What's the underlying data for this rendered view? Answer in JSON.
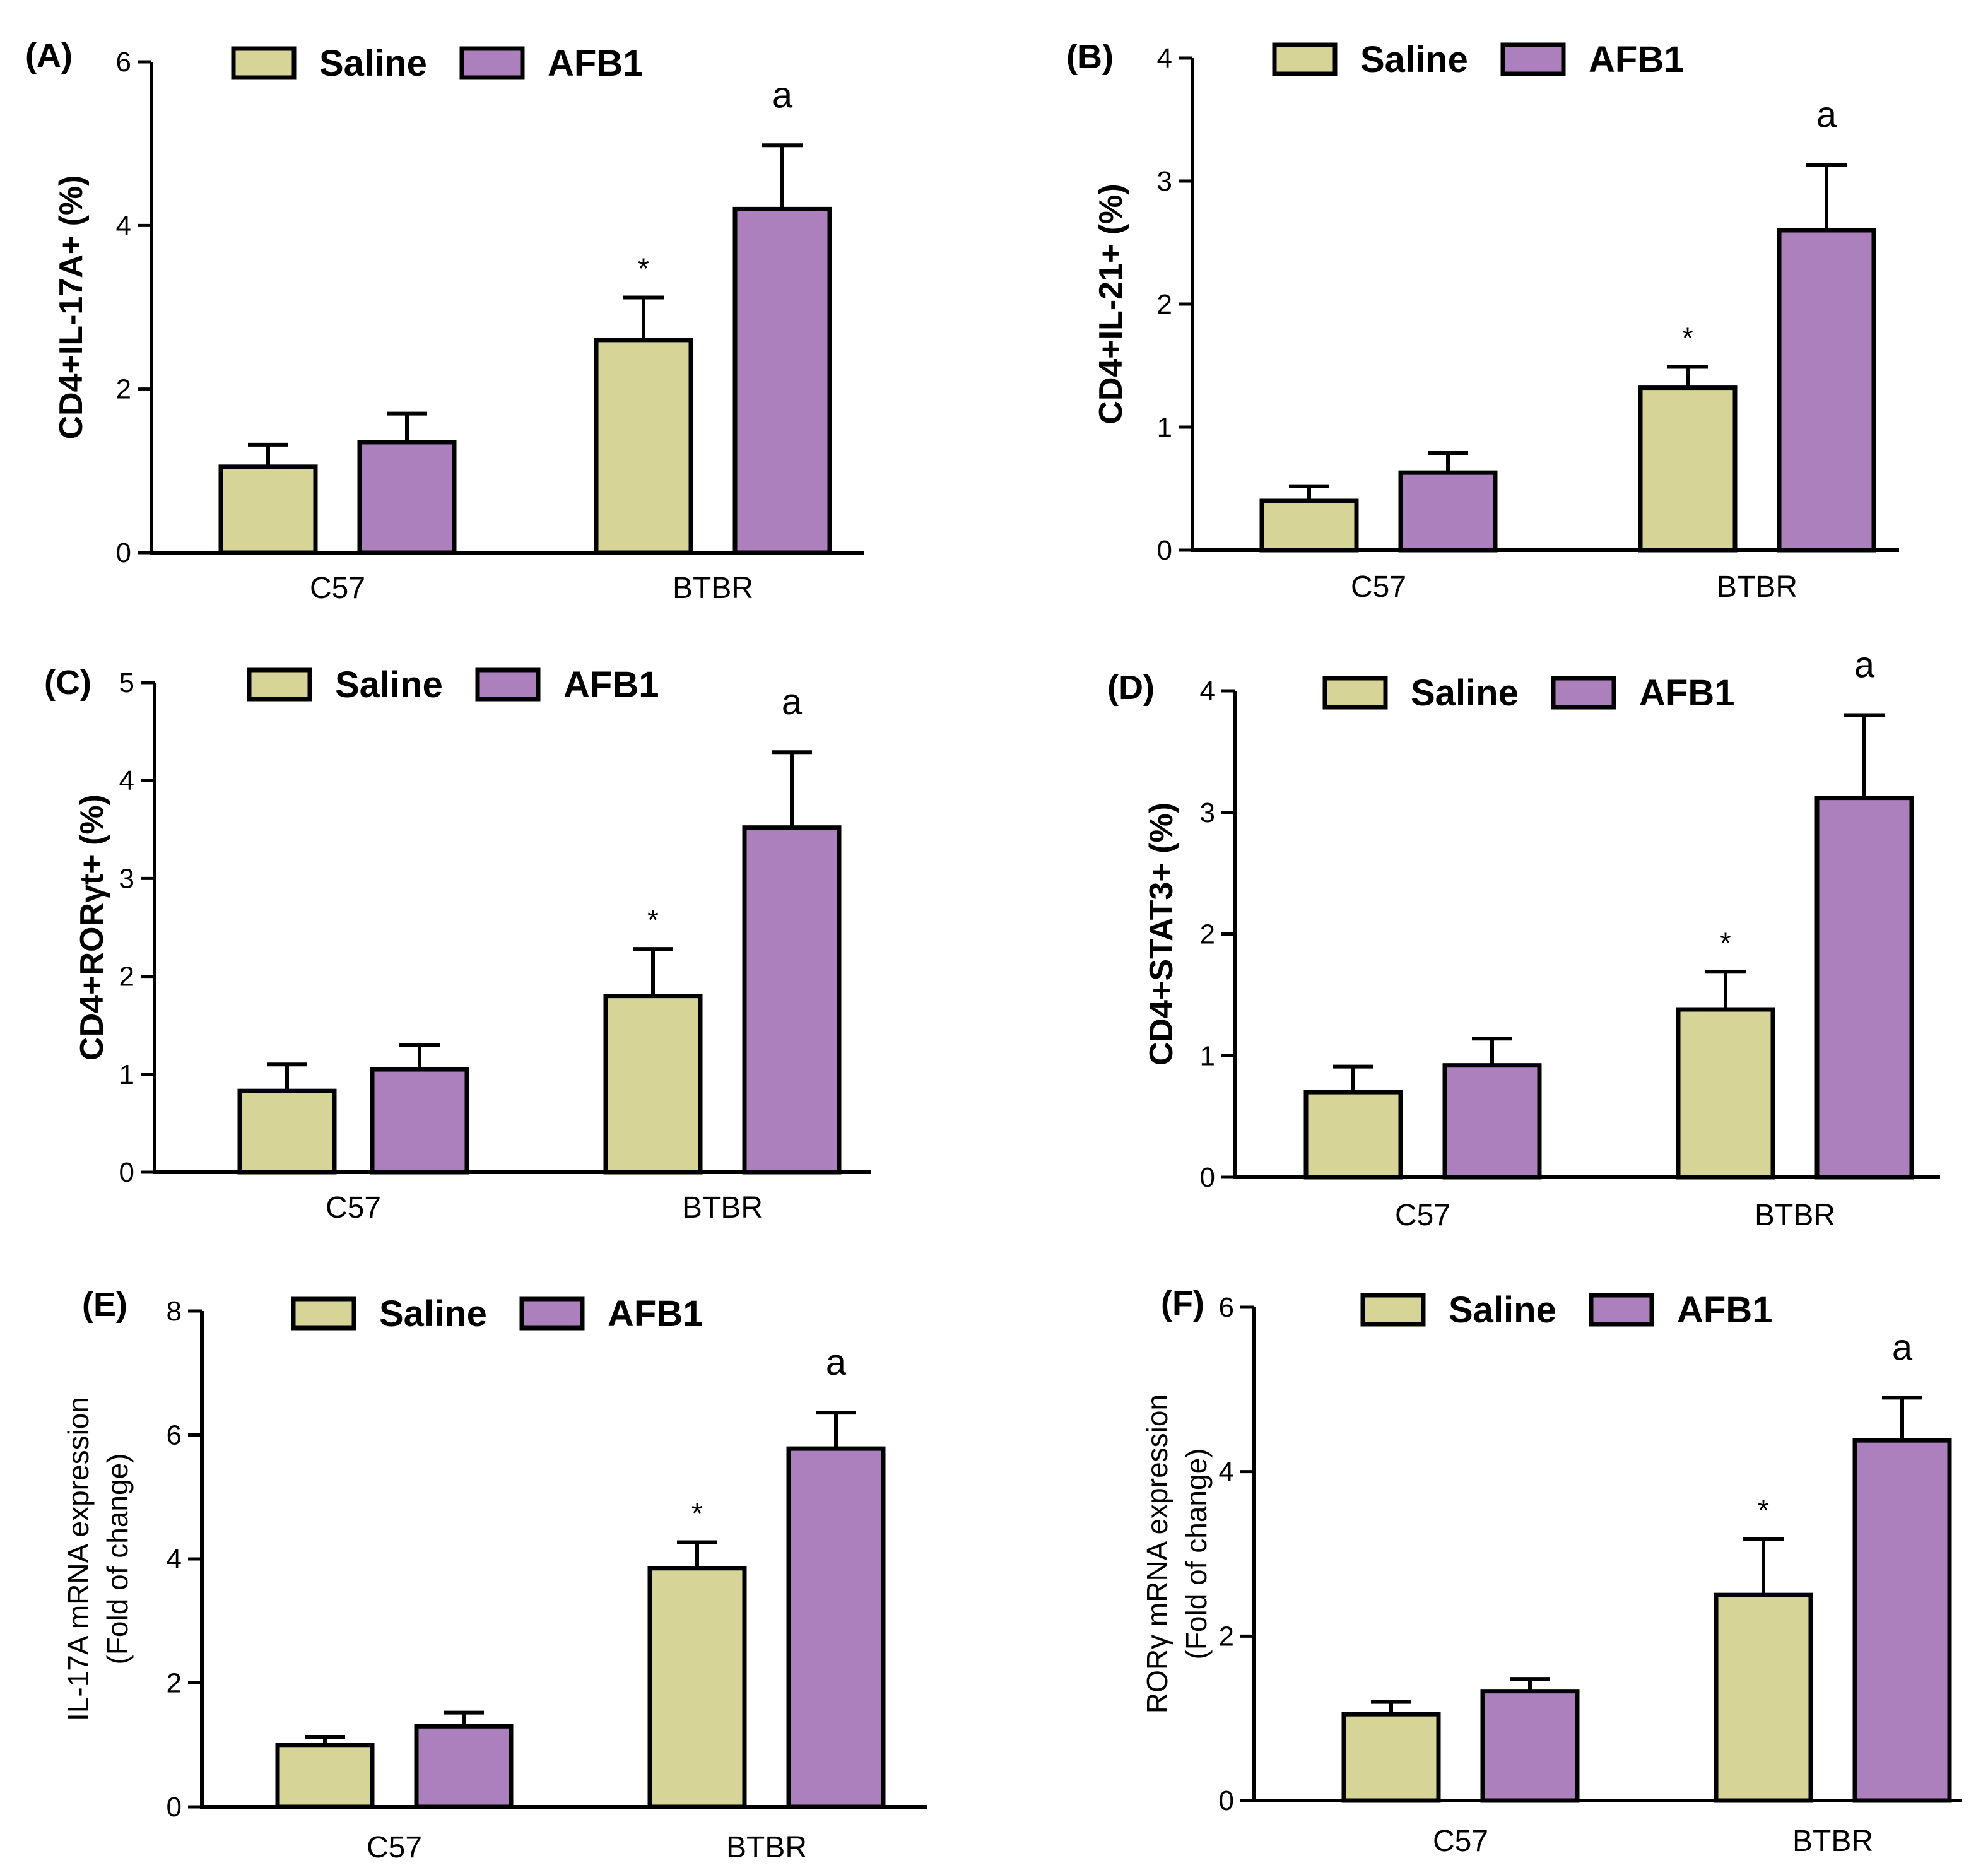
{
  "colors": {
    "saline": "#D6D597",
    "afb1": "#AC80BD",
    "stroke": "#000000"
  },
  "chart_data": [
    {
      "type": "bar",
      "panel": "(A)",
      "ylabel_lines": [
        "CD4+IL-17A+ (%)"
      ],
      "ylabel_style": "bold",
      "yticks": [
        0,
        2,
        4,
        6
      ],
      "ylim": [
        0,
        6
      ],
      "categories": [
        "C57",
        "BTBR"
      ],
      "legend": [
        "Saline",
        "AFB1"
      ],
      "series": [
        {
          "name": "Saline",
          "values": [
            1.05,
            2.6
          ],
          "errors": [
            0.27,
            0.52
          ]
        },
        {
          "name": "AFB1",
          "values": [
            1.35,
            4.2
          ],
          "errors": [
            0.35,
            0.78
          ]
        }
      ],
      "annotations": [
        {
          "category": "BTBR",
          "series": "Saline",
          "text": "*"
        },
        {
          "category": "BTBR",
          "series": "AFB1",
          "text": "a"
        }
      ]
    },
    {
      "type": "bar",
      "panel": "(B)",
      "ylabel_lines": [
        "CD4+IL-21+ (%)"
      ],
      "ylabel_style": "bold",
      "yticks": [
        0,
        1,
        2,
        3,
        4
      ],
      "ylim": [
        0,
        4
      ],
      "categories": [
        "C57",
        "BTBR"
      ],
      "legend": [
        "Saline",
        "AFB1"
      ],
      "series": [
        {
          "name": "Saline",
          "values": [
            0.4,
            1.32
          ],
          "errors": [
            0.12,
            0.17
          ]
        },
        {
          "name": "AFB1",
          "values": [
            0.63,
            2.6
          ],
          "errors": [
            0.16,
            0.53
          ]
        }
      ],
      "annotations": [
        {
          "category": "BTBR",
          "series": "Saline",
          "text": "*"
        },
        {
          "category": "BTBR",
          "series": "AFB1",
          "text": "a"
        }
      ]
    },
    {
      "type": "bar",
      "panel": "(C)",
      "ylabel_lines": [
        "CD4+RORγt+ (%)"
      ],
      "ylabel_style": "bold",
      "yticks": [
        0,
        1,
        2,
        3,
        4,
        5
      ],
      "ylim": [
        0,
        5
      ],
      "categories": [
        "C57",
        "BTBR"
      ],
      "legend": [
        "Saline",
        "AFB1"
      ],
      "series": [
        {
          "name": "Saline",
          "values": [
            0.83,
            1.8
          ],
          "errors": [
            0.27,
            0.48
          ]
        },
        {
          "name": "AFB1",
          "values": [
            1.05,
            3.52
          ],
          "errors": [
            0.25,
            0.77
          ]
        }
      ],
      "annotations": [
        {
          "category": "BTBR",
          "series": "Saline",
          "text": "*"
        },
        {
          "category": "BTBR",
          "series": "AFB1",
          "text": "a"
        }
      ]
    },
    {
      "type": "bar",
      "panel": "(D)",
      "ylabel_lines": [
        "CD4+STAT3+ (%)"
      ],
      "ylabel_style": "bold",
      "yticks": [
        0,
        1,
        2,
        3,
        4
      ],
      "ylim": [
        0,
        4
      ],
      "categories": [
        "C57",
        "BTBR"
      ],
      "legend": [
        "Saline",
        "AFB1"
      ],
      "series": [
        {
          "name": "Saline",
          "values": [
            0.7,
            1.38
          ],
          "errors": [
            0.21,
            0.31
          ]
        },
        {
          "name": "AFB1",
          "values": [
            0.92,
            3.12
          ],
          "errors": [
            0.22,
            0.68
          ]
        }
      ],
      "annotations": [
        {
          "category": "BTBR",
          "series": "Saline",
          "text": "*"
        },
        {
          "category": "BTBR",
          "series": "AFB1",
          "text": "a"
        }
      ]
    },
    {
      "type": "bar",
      "panel": "(E)",
      "ylabel_lines": [
        "IL-17A mRNA expression",
        "(Fold of change)"
      ],
      "ylabel_style": "regular",
      "yticks": [
        0,
        2,
        4,
        6,
        8
      ],
      "ylim": [
        0,
        8
      ],
      "categories": [
        "C57",
        "BTBR"
      ],
      "legend": [
        "Saline",
        "AFB1"
      ],
      "series": [
        {
          "name": "Saline",
          "values": [
            1.0,
            3.85
          ],
          "errors": [
            0.13,
            0.42
          ]
        },
        {
          "name": "AFB1",
          "values": [
            1.3,
            5.78
          ],
          "errors": [
            0.22,
            0.58
          ]
        }
      ],
      "annotations": [
        {
          "category": "BTBR",
          "series": "Saline",
          "text": "*"
        },
        {
          "category": "BTBR",
          "series": "AFB1",
          "text": "a"
        }
      ]
    },
    {
      "type": "bar",
      "panel": "(F)",
      "ylabel_lines": [
        "RORγ mRNA expression",
        "(Fold of change)"
      ],
      "ylabel_style": "regular",
      "yticks": [
        0,
        2,
        4,
        6
      ],
      "ylim": [
        0,
        6
      ],
      "categories": [
        "C57",
        "BTBR"
      ],
      "legend": [
        "Saline",
        "AFB1"
      ],
      "series": [
        {
          "name": "Saline",
          "values": [
            1.05,
            2.5
          ],
          "errors": [
            0.15,
            0.68
          ]
        },
        {
          "name": "AFB1",
          "values": [
            1.33,
            4.38
          ],
          "errors": [
            0.15,
            0.52
          ]
        }
      ],
      "annotations": [
        {
          "category": "BTBR",
          "series": "Saline",
          "text": "*"
        },
        {
          "category": "BTBR",
          "series": "AFB1",
          "text": "a"
        }
      ]
    }
  ]
}
